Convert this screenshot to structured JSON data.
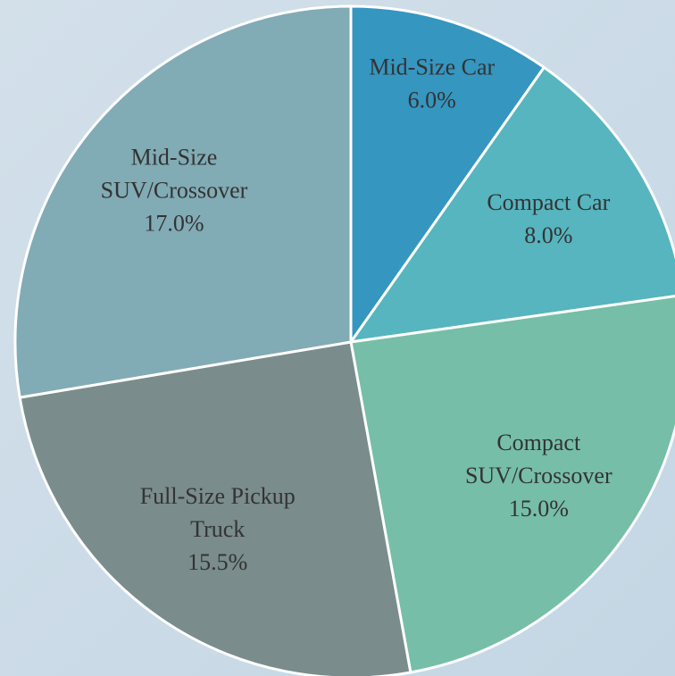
{
  "chart_data": {
    "type": "pie",
    "categories": [
      "Mid-Size Car",
      "Compact Car",
      "Compact\nSUV/Crossover",
      "Full-Size Pickup\nTruck",
      "Mid-Size\nSUV/Crossover"
    ],
    "values": [
      6.0,
      8.0,
      15.0,
      15.5,
      17.0
    ],
    "value_labels": [
      "6.0%",
      "8.0%",
      "15.0%",
      "15.5%",
      "17.0%"
    ],
    "colors": [
      "#3596c0",
      "#56b5bf",
      "#76bea7",
      "#7a8c8b",
      "#81abb5"
    ]
  }
}
